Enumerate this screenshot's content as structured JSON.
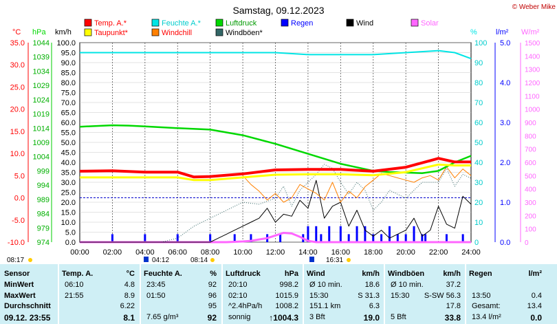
{
  "title": "Samstag, 09.12.2023",
  "credit": "© Weber Mike",
  "colors": {
    "temp": "#ff0000",
    "humidity": "#00e5e5",
    "pressure": "#00d800",
    "rain": "#0000ff",
    "wind": "#000000",
    "solar": "#ff66ff",
    "dewpoint": "#ffff00",
    "windchill": "#ff8000",
    "gust": "#336666",
    "table_bg": "#cfeff5"
  },
  "legend": [
    {
      "label": "Temp. A.*",
      "color": "#ff0000"
    },
    {
      "label": "Feuchte A.*",
      "color": "#00e5e5"
    },
    {
      "label": "Luftdruck",
      "color": "#00d800"
    },
    {
      "label": "Regen",
      "color": "#0000ff"
    },
    {
      "label": "Wind",
      "color": "#000000"
    },
    {
      "label": "Solar",
      "color": "#ff66ff"
    },
    {
      "label": "Taupunkt*",
      "color": "#ffff00"
    },
    {
      "label": "Windchill",
      "color": "#ff8000"
    },
    {
      "label": "Windböen*",
      "color": "#336666"
    }
  ],
  "axes": {
    "temp": {
      "unit": "°C",
      "color": "#ff0000",
      "ticks": [
        "35.0",
        "30.0",
        "25.0",
        "20.0",
        "15.0",
        "10.0",
        "5.0",
        "0.0",
        "-5.0",
        "-10.0"
      ]
    },
    "pressure": {
      "unit": "hPa",
      "color": "#00d800",
      "ticks": [
        "1044",
        "1039",
        "1034",
        "1029",
        "1024",
        "1019",
        "1014",
        "1009",
        "1004",
        "999",
        "994",
        "989",
        "984",
        "979",
        "974"
      ]
    },
    "wind": {
      "unit": "km/h",
      "color": "#000000",
      "ticks": [
        "100.0",
        "95.0",
        "90.0",
        "85.0",
        "80.0",
        "75.0",
        "70.0",
        "65.0",
        "60.0",
        "55.0",
        "50.0",
        "45.0",
        "40.0",
        "35.0",
        "30.0",
        "25.0",
        "20.0",
        "15.0",
        "10.0",
        "5.0",
        "0.0"
      ]
    },
    "humidity": {
      "unit": "%",
      "color": "#00e5e5",
      "ticks": [
        "100",
        "90",
        "80",
        "70",
        "60",
        "50",
        "40",
        "30",
        "20",
        "10",
        "0"
      ]
    },
    "rain": {
      "unit": "l/m²",
      "color": "#0000ff",
      "ticks": [
        "5.0",
        "4.0",
        "3.0",
        "2.0",
        "1.0",
        "0.0"
      ]
    },
    "solar": {
      "unit": "W/m²",
      "color": "#ff66ff",
      "ticks": [
        "1500",
        "1400",
        "1300",
        "1200",
        "1100",
        "1000",
        "900",
        "800",
        "700",
        "600",
        "500",
        "400",
        "300",
        "200",
        "100",
        "0"
      ]
    },
    "x_ticks": [
      "00:00",
      "02:00",
      "04:00",
      "06:00",
      "08:00",
      "10:00",
      "12:00",
      "14:00",
      "16:00",
      "18:00",
      "20:00",
      "22:00",
      "24:00"
    ]
  },
  "sun_events": [
    "08:17",
    "04:12",
    "08:14",
    "16:31"
  ],
  "chart_data": {
    "type": "line",
    "x_unit": "hours",
    "xlim": [
      0,
      24
    ],
    "series": [
      {
        "name": "Temp. A.*",
        "axis": "temp",
        "x": [
          0,
          2,
          4,
          6,
          7,
          8,
          10,
          12,
          14,
          16,
          18,
          20,
          22,
          23,
          24
        ],
        "values": [
          6.0,
          6.1,
          5.8,
          5.8,
          4.7,
          4.8,
          5.4,
          6.3,
          6.4,
          6.4,
          6.0,
          6.9,
          8.9,
          8.1,
          8.1
        ]
      },
      {
        "name": "Feuchte A.*",
        "axis": "humidity",
        "x": [
          0,
          2,
          4,
          6,
          8,
          10,
          12,
          14,
          16,
          18,
          20,
          22,
          23,
          24
        ],
        "values": [
          95,
          95,
          95,
          95,
          95,
          95,
          95,
          94,
          94,
          94,
          95,
          96,
          95,
          92
        ]
      },
      {
        "name": "Luftdruck",
        "axis": "pressure",
        "x": [
          0,
          2,
          3,
          4,
          6,
          8,
          9,
          10,
          12,
          14,
          16,
          18,
          19,
          20,
          21,
          22,
          23,
          24
        ],
        "values": [
          1014.5,
          1015.0,
          1014.9,
          1014.6,
          1014.0,
          1013.5,
          1012.5,
          1011.5,
          1008.5,
          1005.0,
          1001.5,
          999.0,
          998.6,
          998.4,
          998.2,
          999.0,
          1002.0,
          1004.3
        ]
      },
      {
        "name": "Taupunkt*",
        "axis": "temp",
        "x": [
          0,
          2,
          4,
          6,
          7,
          8,
          10,
          12,
          14,
          16,
          18,
          20,
          22,
          23,
          24
        ],
        "values": [
          4.6,
          4.6,
          4.6,
          4.6,
          4.0,
          4.0,
          4.6,
          5.2,
          5.3,
          5.3,
          5.1,
          5.8,
          7.5,
          7.3,
          7.3
        ]
      },
      {
        "name": "Windchill",
        "axis": "temp",
        "x": [
          10,
          10.5,
          11,
          11.5,
          12,
          12.5,
          13,
          13.5,
          14,
          14.5,
          15,
          15.5,
          16,
          16.5,
          17,
          17.5,
          18,
          18.5,
          19,
          19.5,
          20,
          20.5,
          21,
          21.5,
          22,
          22.5,
          23,
          23.5,
          24
        ],
        "values": [
          5.0,
          3.0,
          1.5,
          -0.5,
          1.0,
          -1.0,
          0.0,
          3.0,
          2.0,
          1.0,
          -0.5,
          3.5,
          -1.0,
          1.5,
          0.0,
          2.5,
          4.0,
          5.5,
          5.0,
          4.5,
          4.0,
          3.5,
          4.5,
          5.0,
          4.0,
          7.0,
          4.5,
          6.5,
          5.0
        ]
      },
      {
        "name": "Wind",
        "axis": "wind",
        "x": [
          0,
          8,
          8.5,
          9,
          9.5,
          10,
          10.5,
          11,
          11.5,
          12,
          12.5,
          13,
          13.5,
          14,
          14.5,
          15,
          15.5,
          16,
          16.5,
          17,
          17.5,
          18,
          18.5,
          19,
          19.5,
          20,
          20.5,
          21,
          21.5,
          22,
          22.5,
          23,
          23.5,
          24
        ],
        "values": [
          0,
          0,
          2,
          4,
          6,
          8,
          10,
          12,
          17,
          10,
          14,
          13,
          21,
          17,
          31,
          12,
          18,
          20,
          8,
          16,
          6,
          3,
          6,
          2,
          4,
          6,
          12,
          3,
          6,
          18,
          9,
          7,
          23,
          19
        ]
      },
      {
        "name": "Windböen*",
        "axis": "wind",
        "x": [
          5,
          6,
          7,
          8,
          9,
          10,
          11,
          12,
          12.5,
          13,
          13.5,
          14,
          14.5,
          15,
          15.5,
          16,
          16.5,
          17,
          17.5,
          18,
          18.5,
          19,
          20,
          21,
          22,
          22.5,
          23,
          23.5,
          24
        ],
        "values": [
          0,
          2,
          8,
          12,
          16,
          20,
          19,
          22,
          28,
          18,
          26,
          30,
          34,
          39,
          37,
          30,
          24,
          30,
          26,
          16,
          20,
          26,
          22,
          30,
          30,
          37,
          28,
          34,
          32
        ]
      },
      {
        "name": "Solar",
        "axis": "solar",
        "x": [
          0,
          9,
          10,
          10.5,
          11,
          11.5,
          12,
          12.5,
          13,
          13.5,
          14,
          14.5,
          15,
          24
        ],
        "values": [
          0,
          0,
          5,
          10,
          20,
          30,
          50,
          70,
          65,
          40,
          10,
          0,
          0,
          0
        ]
      },
      {
        "name": "Regen",
        "axis": "rain",
        "type": "bar",
        "x": [
          2,
          4,
          6,
          8,
          9.5,
          10.5,
          11.5,
          12.3,
          13.7,
          14,
          14.5,
          14.8,
          15.3,
          16,
          16.5,
          17,
          17.5,
          18,
          18.5,
          19,
          19.5,
          20,
          20.5,
          21,
          21.2,
          22.5,
          23.5
        ],
        "values": [
          0.2,
          0.2,
          0.2,
          0.2,
          0.2,
          0.2,
          0.2,
          0.2,
          0.2,
          0.4,
          0.4,
          0.2,
          0.4,
          0.4,
          0.2,
          0.4,
          0.4,
          0.2,
          0.2,
          0.4,
          0.2,
          0.2,
          0.4,
          0.2,
          0.2,
          0.2,
          0.2
        ]
      }
    ]
  },
  "table": {
    "row_labels": [
      "Sensor",
      "MinWert",
      "MaxWert",
      "Durchschnitt",
      "09.12. 23:55"
    ],
    "columns": [
      {
        "header": "Temp. A.",
        "unit": "°C",
        "rows": [
          [
            "06:10",
            "4.8"
          ],
          [
            "21:55",
            "8.9"
          ],
          [
            "",
            "6.22"
          ],
          [
            "",
            "8.1"
          ]
        ]
      },
      {
        "header": "Feuchte A.",
        "unit": "%",
        "rows": [
          [
            "23:45",
            "92"
          ],
          [
            "01:50",
            "96"
          ],
          [
            "",
            "95"
          ],
          [
            "7.65 g/m³",
            "92"
          ]
        ]
      },
      {
        "header": "Luftdruck",
        "unit": "hPa",
        "rows": [
          [
            "20:10",
            "998.2"
          ],
          [
            "02:10",
            "1015.9"
          ],
          [
            "^2.4hPa/h",
            "1008.2"
          ],
          [
            "sonnig",
            "↑1004.3"
          ]
        ]
      },
      {
        "header": "Wind",
        "unit": "km/h",
        "rows": [
          [
            "Ø 10 min.",
            "18.6"
          ],
          [
            "15:30",
            "S 31.3"
          ],
          [
            "151.1 km",
            "6.3"
          ],
          [
            "3 Bft",
            "19.0"
          ]
        ]
      },
      {
        "header": "Windböen",
        "unit": "km/h",
        "rows": [
          [
            "Ø 10 min.",
            "37.2"
          ],
          [
            "15:30",
            "S-SW 56.3"
          ],
          [
            "",
            "17.8"
          ],
          [
            "5 Bft",
            "33.8"
          ]
        ]
      },
      {
        "header": "Regen",
        "unit": "l/m²",
        "rows": [
          [
            "",
            ""
          ],
          [
            "13:50",
            "0.4"
          ],
          [
            "Gesamt:",
            "13.4"
          ],
          [
            "13.4 l/m²",
            "0.0"
          ]
        ]
      }
    ]
  }
}
